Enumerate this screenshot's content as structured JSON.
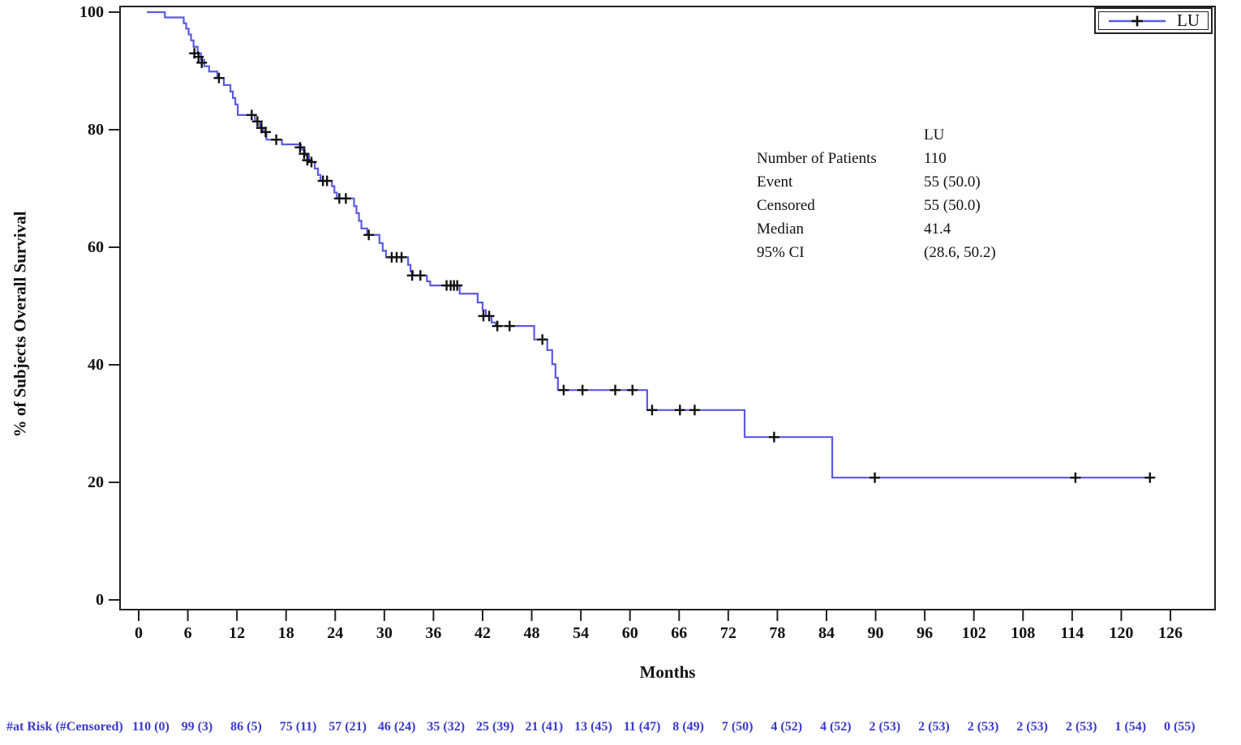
{
  "yaxis": {
    "title": "% of Subjects Overall Survival",
    "ticks": [
      0,
      20,
      40,
      60,
      80,
      100
    ]
  },
  "xaxis": {
    "title": "Months",
    "ticks": [
      0,
      6,
      12,
      18,
      24,
      30,
      36,
      42,
      48,
      54,
      60,
      66,
      72,
      78,
      84,
      90,
      96,
      102,
      108,
      114,
      120,
      126
    ]
  },
  "legend": {
    "label": "LU"
  },
  "stats_box": {
    "header": "LU",
    "rows": [
      {
        "label": "Number of Patients",
        "value": "110"
      },
      {
        "label": "Event",
        "value": "55 (50.0)"
      },
      {
        "label": "Censored",
        "value": "55 (50.0)"
      },
      {
        "label": "Median",
        "value": "41.4"
      },
      {
        "label": "95% CI",
        "value": "(28.6, 50.2)"
      }
    ]
  },
  "at_risk": {
    "label": "#at Risk (#Censored)",
    "times": [
      0,
      6,
      12,
      18,
      24,
      30,
      36,
      42,
      48,
      54,
      60,
      66,
      72,
      78,
      84,
      90,
      96,
      102,
      108,
      114,
      120,
      126
    ],
    "values": [
      "110 (0)",
      "99 (3)",
      "86 (5)",
      "75 (11)",
      "57 (21)",
      "46 (24)",
      "35 (32)",
      "25 (39)",
      "21 (41)",
      "13 (45)",
      "11 (47)",
      "8 (49)",
      "7 (50)",
      "4 (52)",
      "4 (52)",
      "2 (53)",
      "2 (53)",
      "2 (53)",
      "2 (53)",
      "2 (53)",
      "1 (54)",
      "0 (55)"
    ]
  },
  "chart_data": {
    "type": "line",
    "subtype": "kaplan-meier-step",
    "title": "",
    "xlabel": "Months",
    "ylabel": "% of Subjects Overall Survival",
    "xlim": [
      0,
      131
    ],
    "ylim": [
      0,
      100
    ],
    "x_ticks": [
      0,
      6,
      12,
      18,
      24,
      30,
      36,
      42,
      48,
      54,
      60,
      66,
      72,
      78,
      84,
      90,
      96,
      102,
      108,
      114,
      120,
      126
    ],
    "y_ticks": [
      0,
      20,
      40,
      60,
      80,
      100
    ],
    "grid": false,
    "legend_position": "top-right",
    "series": [
      {
        "name": "LU",
        "color": "#5a5ae0",
        "n_patients": 110,
        "events": "55 (50.0)",
        "censored": "55 (50.0)",
        "median": 41.4,
        "ci95": "(28.6, 50.2)",
        "steps": [
          [
            1.0,
            100
          ],
          [
            3.2,
            99.1
          ],
          [
            5.5,
            98.1
          ],
          [
            5.8,
            97.2
          ],
          [
            6.1,
            96.2
          ],
          [
            6.4,
            95.2
          ],
          [
            6.7,
            94.1
          ],
          [
            7.2,
            93.0
          ],
          [
            7.6,
            91.9
          ],
          [
            8.0,
            90.8
          ],
          [
            8.6,
            89.9
          ],
          [
            9.6,
            88.8
          ],
          [
            10.4,
            87.6
          ],
          [
            11.2,
            86.5
          ],
          [
            11.5,
            85.4
          ],
          [
            11.8,
            84.3
          ],
          [
            12.1,
            82.5
          ],
          [
            14.2,
            81.4
          ],
          [
            14.8,
            80.3
          ],
          [
            15.2,
            79.6
          ],
          [
            15.6,
            78.3
          ],
          [
            17.5,
            77.5
          ],
          [
            19.8,
            76.6
          ],
          [
            20.3,
            75.6
          ],
          [
            20.8,
            74.5
          ],
          [
            21.5,
            73.4
          ],
          [
            21.9,
            72.3
          ],
          [
            22.2,
            71.3
          ],
          [
            23.6,
            70.4
          ],
          [
            23.9,
            69.3
          ],
          [
            24.2,
            68.3
          ],
          [
            26.3,
            67.0
          ],
          [
            26.6,
            65.8
          ],
          [
            26.9,
            64.5
          ],
          [
            27.2,
            63.2
          ],
          [
            27.9,
            62.1
          ],
          [
            29.4,
            60.7
          ],
          [
            29.8,
            59.4
          ],
          [
            30.2,
            58.3
          ],
          [
            32.9,
            57.0
          ],
          [
            33.2,
            55.9
          ],
          [
            33.5,
            55.2
          ],
          [
            35.2,
            54.2
          ],
          [
            35.6,
            53.5
          ],
          [
            39.2,
            52.1
          ],
          [
            41.4,
            50.6
          ],
          [
            42.0,
            49.3
          ],
          [
            42.4,
            48.3
          ],
          [
            43.1,
            47.2
          ],
          [
            43.6,
            46.6
          ],
          [
            48.3,
            44.3
          ],
          [
            49.9,
            42.5
          ],
          [
            50.5,
            40.1
          ],
          [
            50.9,
            37.8
          ],
          [
            51.2,
            35.7
          ],
          [
            62.1,
            32.3
          ],
          [
            74.0,
            27.7
          ],
          [
            84.7,
            20.8
          ]
        ],
        "end_month": 123.8,
        "censor_marks": [
          [
            6.8,
            93.0
          ],
          [
            7.3,
            92.4
          ],
          [
            7.7,
            91.4
          ],
          [
            9.8,
            88.8
          ],
          [
            13.8,
            82.5
          ],
          [
            14.5,
            81.4
          ],
          [
            15.0,
            80.3
          ],
          [
            15.5,
            79.6
          ],
          [
            16.8,
            78.3
          ],
          [
            19.7,
            77.0
          ],
          [
            20.2,
            75.9
          ],
          [
            20.6,
            74.8
          ],
          [
            21.1,
            74.5
          ],
          [
            22.5,
            71.3
          ],
          [
            23.0,
            71.3
          ],
          [
            24.5,
            68.3
          ],
          [
            25.3,
            68.3
          ],
          [
            28.1,
            62.1
          ],
          [
            30.9,
            58.3
          ],
          [
            31.5,
            58.3
          ],
          [
            32.1,
            58.3
          ],
          [
            33.4,
            55.2
          ],
          [
            34.4,
            55.2
          ],
          [
            37.6,
            53.5
          ],
          [
            38.1,
            53.5
          ],
          [
            38.5,
            53.5
          ],
          [
            38.9,
            53.5
          ],
          [
            42.1,
            48.3
          ],
          [
            42.8,
            48.3
          ],
          [
            43.8,
            46.6
          ],
          [
            45.3,
            46.6
          ],
          [
            49.3,
            44.3
          ],
          [
            51.9,
            35.7
          ],
          [
            54.2,
            35.7
          ],
          [
            58.2,
            35.7
          ],
          [
            60.3,
            35.7
          ],
          [
            62.7,
            32.3
          ],
          [
            66.1,
            32.3
          ],
          [
            67.9,
            32.3
          ],
          [
            77.6,
            27.7
          ],
          [
            89.9,
            20.8
          ],
          [
            114.4,
            20.8
          ],
          [
            123.5,
            20.8
          ]
        ]
      }
    ]
  }
}
